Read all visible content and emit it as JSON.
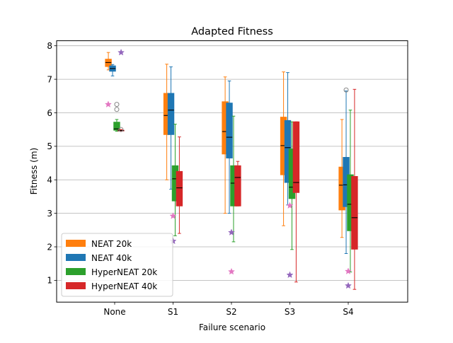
{
  "chart_data": {
    "type": "box",
    "title": "Adapted Fitness",
    "xlabel": "Failure scenario",
    "ylabel": "Fitness (m)",
    "categories": [
      "None",
      "S1",
      "S2",
      "S3",
      "S4"
    ],
    "ylim": [
      0.35,
      8.15
    ],
    "yticks": [
      "1",
      "2",
      "3",
      "4",
      "5",
      "6",
      "7",
      "8"
    ],
    "grid": "horizontal",
    "legend_position": "lower-left",
    "series": [
      {
        "name": "NEAT 20k",
        "color": "#ff7f0e",
        "boxes": [
          {
            "whislo": 7.28,
            "q1": 7.38,
            "med": 7.5,
            "q3": 7.6,
            "whishi": 7.8,
            "fliers": []
          },
          {
            "whislo": 4.0,
            "q1": 5.35,
            "med": 5.92,
            "q3": 6.58,
            "whishi": 7.45,
            "fliers": []
          },
          {
            "whislo": 3.0,
            "q1": 4.77,
            "med": 5.44,
            "q3": 6.33,
            "whishi": 7.07,
            "fliers": []
          },
          {
            "whislo": 2.63,
            "q1": 4.15,
            "med": 5.02,
            "q3": 5.87,
            "whishi": 7.22,
            "fliers": []
          },
          {
            "whislo": 2.28,
            "q1": 3.1,
            "med": 3.84,
            "q3": 4.38,
            "whishi": 5.8,
            "fliers": []
          }
        ]
      },
      {
        "name": "NEAT 40k",
        "color": "#1f77b4",
        "boxes": [
          {
            "whislo": 7.1,
            "q1": 7.24,
            "med": 7.32,
            "q3": 7.4,
            "whishi": 7.44,
            "fliers": []
          },
          {
            "whislo": 3.72,
            "q1": 5.35,
            "med": 6.08,
            "q3": 6.58,
            "whishi": 7.37,
            "fliers": []
          },
          {
            "whislo": 3.0,
            "q1": 4.65,
            "med": 5.27,
            "q3": 6.29,
            "whishi": 6.95,
            "fliers": []
          },
          {
            "whislo": 3.25,
            "q1": 3.92,
            "med": 4.96,
            "q3": 5.77,
            "whishi": 7.2,
            "fliers": []
          },
          {
            "whislo": 1.8,
            "q1": 3.2,
            "med": 3.85,
            "q3": 4.67,
            "whishi": 6.65,
            "fliers": [
              6.68
            ]
          }
        ]
      },
      {
        "name": "HyperNEAT 20k",
        "color": "#2ca02c",
        "boxes": [
          {
            "whislo": 5.45,
            "q1": 5.48,
            "med": 5.52,
            "q3": 5.72,
            "whishi": 5.8,
            "fliers": [
              6.1,
              6.25
            ]
          },
          {
            "whislo": 2.33,
            "q1": 3.37,
            "med": 4.03,
            "q3": 4.42,
            "whishi": 5.66,
            "fliers": []
          },
          {
            "whislo": 2.15,
            "q1": 3.22,
            "med": 3.9,
            "q3": 4.42,
            "whishi": 5.9,
            "fliers": []
          },
          {
            "whislo": 1.92,
            "q1": 3.44,
            "med": 3.78,
            "q3": 4.92,
            "whishi": 5.73,
            "fliers": []
          },
          {
            "whislo": 1.25,
            "q1": 2.48,
            "med": 3.27,
            "q3": 4.15,
            "whishi": 6.08,
            "fliers": []
          }
        ]
      },
      {
        "name": "HyperNEAT 40k",
        "color": "#d62728",
        "boxes": [
          {
            "whislo": 5.47,
            "q1": 5.47,
            "med": 5.47,
            "q3": 5.48,
            "whishi": 5.5,
            "fliers": [
              5.5
            ]
          },
          {
            "whislo": 2.4,
            "q1": 3.22,
            "med": 3.76,
            "q3": 4.25,
            "whishi": 5.28,
            "fliers": []
          },
          {
            "whislo": 3.22,
            "q1": 3.22,
            "med": 4.07,
            "q3": 4.42,
            "whishi": 4.55,
            "fliers": []
          },
          {
            "whislo": 0.95,
            "q1": 3.62,
            "med": 3.92,
            "q3": 5.73,
            "whishi": 5.73,
            "fliers": []
          },
          {
            "whislo": 0.73,
            "q1": 1.93,
            "med": 2.87,
            "q3": 4.1,
            "whishi": 6.7,
            "fliers": []
          }
        ]
      }
    ],
    "markers": [
      {
        "category": 0,
        "offset": 0.11,
        "y": 7.8,
        "color": "#9467bd"
      },
      {
        "category": 0,
        "offset": -0.11,
        "y": 6.25,
        "color": "#e377c2"
      },
      {
        "category": 1,
        "offset": 0.0,
        "y": 2.92,
        "color": "#e377c2"
      },
      {
        "category": 1,
        "offset": 0.0,
        "y": 2.17,
        "color": "#9467bd"
      },
      {
        "category": 2,
        "offset": 0.0,
        "y": 2.43,
        "color": "#9467bd"
      },
      {
        "category": 2,
        "offset": 0.0,
        "y": 1.26,
        "color": "#e377c2"
      },
      {
        "category": 3,
        "offset": 0.0,
        "y": 3.23,
        "color": "#e377c2"
      },
      {
        "category": 3,
        "offset": 0.0,
        "y": 1.16,
        "color": "#9467bd"
      },
      {
        "category": 4,
        "offset": 0.0,
        "y": 1.27,
        "color": "#e377c2"
      },
      {
        "category": 4,
        "offset": 0.0,
        "y": 0.84,
        "color": "#9467bd"
      }
    ]
  }
}
